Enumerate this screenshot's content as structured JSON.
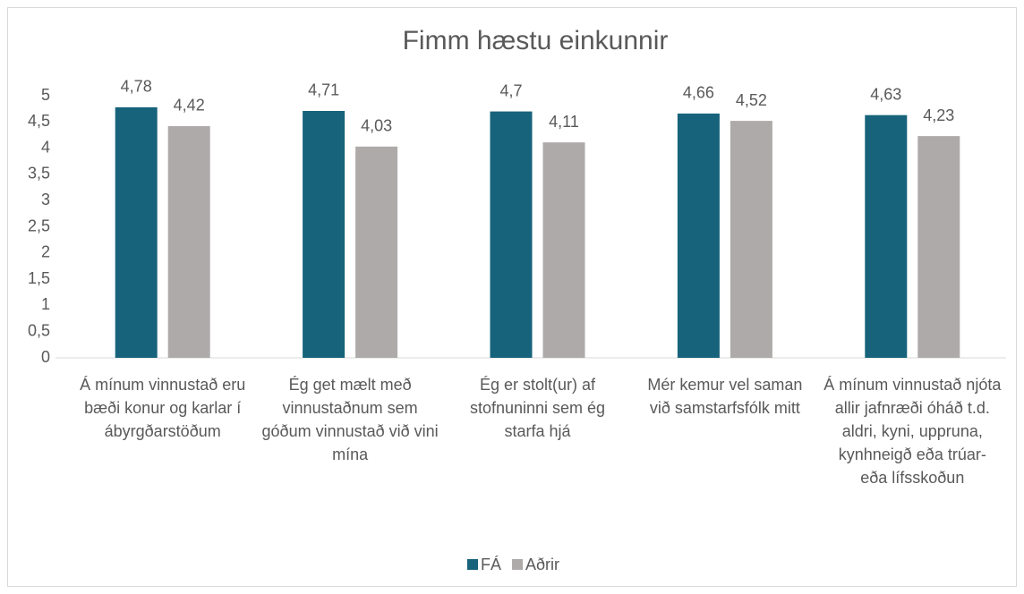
{
  "chart_data": {
    "type": "bar",
    "title": "Fimm hæstu einkunnir",
    "categories": [
      "Á mínum vinnustað eru bæði konur og karlar í ábyrgðarstöðum",
      "Ég get mælt með vinnustaðnum sem góðum vinnustað við vini mína",
      "Ég er stolt(ur) af stofnuninni sem ég starfa hjá",
      "Mér kemur vel saman við samstarfsfólk mitt",
      "Á mínum vinnustað njóta allir jafnræði óháð t.d. aldri, kyni, uppruna, kynhneigð eða trúar- eða lífsskoðun"
    ],
    "series": [
      {
        "name": "FÁ",
        "color": "#17637b",
        "values": [
          4.78,
          4.71,
          4.7,
          4.66,
          4.63
        ],
        "value_labels": [
          "4,78",
          "4,71",
          "4,7",
          "4,66",
          "4,63"
        ]
      },
      {
        "name": "Aðrir",
        "color": "#aeaaaa",
        "values": [
          4.42,
          4.03,
          4.11,
          4.52,
          4.23
        ],
        "value_labels": [
          "4,42",
          "4,03",
          "4,11",
          "4,52",
          "4,23"
        ]
      }
    ],
    "ylim": [
      0,
      5
    ],
    "yticks": [
      0,
      {
        "value": 0.5,
        "label": "0,5"
      },
      1,
      {
        "value": 1.5,
        "label": "1,5"
      },
      2,
      {
        "value": 2.5,
        "label": "2,5"
      },
      3,
      {
        "value": 3.5,
        "label": "3,5"
      },
      4,
      {
        "value": 4.5,
        "label": "4,5"
      },
      5
    ],
    "grid": false,
    "legend": "bottom"
  }
}
